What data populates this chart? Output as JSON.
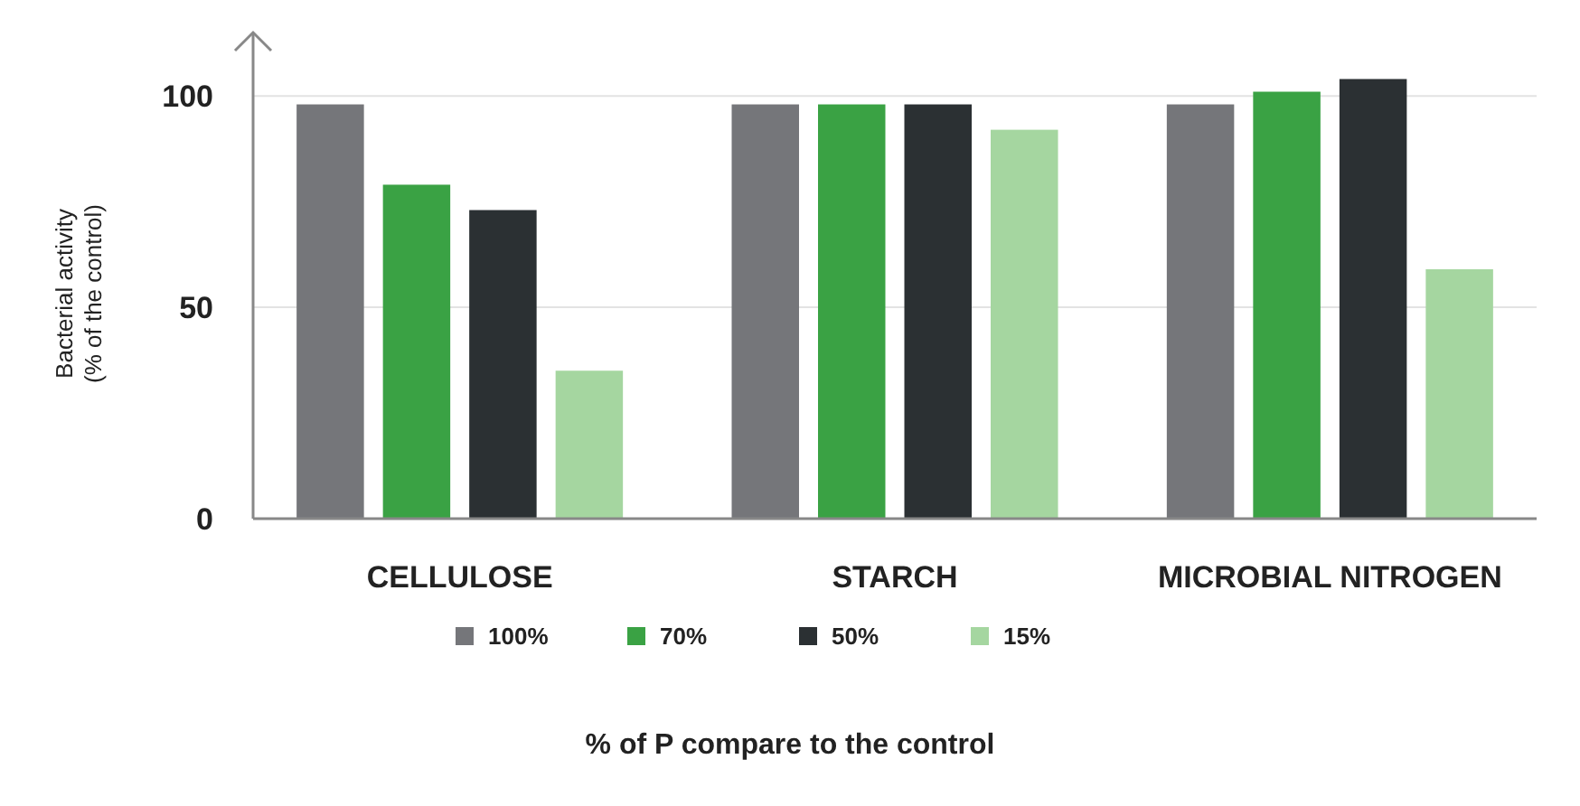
{
  "chart_data": {
    "type": "bar",
    "xlabel": "% of P compare to the control",
    "ylabel": "Bacterial activity\n(% of the control)",
    "categories": [
      "CELLULOSE",
      "STARCH",
      "MICROBIAL NITROGEN"
    ],
    "series": [
      {
        "name": "100%",
        "color": "#75767a",
        "values": [
          98,
          98,
          98
        ]
      },
      {
        "name": "70%",
        "color": "#3aa244",
        "values": [
          79,
          98,
          101
        ]
      },
      {
        "name": "50%",
        "color": "#2b3033",
        "values": [
          73,
          98,
          104
        ]
      },
      {
        "name": "15%",
        "color": "#a5d6a0",
        "values": [
          35,
          92,
          59
        ]
      }
    ],
    "ylim": [
      0,
      115
    ],
    "yticks": [
      0,
      50,
      100
    ],
    "grid": "y",
    "legend": "bottom"
  }
}
